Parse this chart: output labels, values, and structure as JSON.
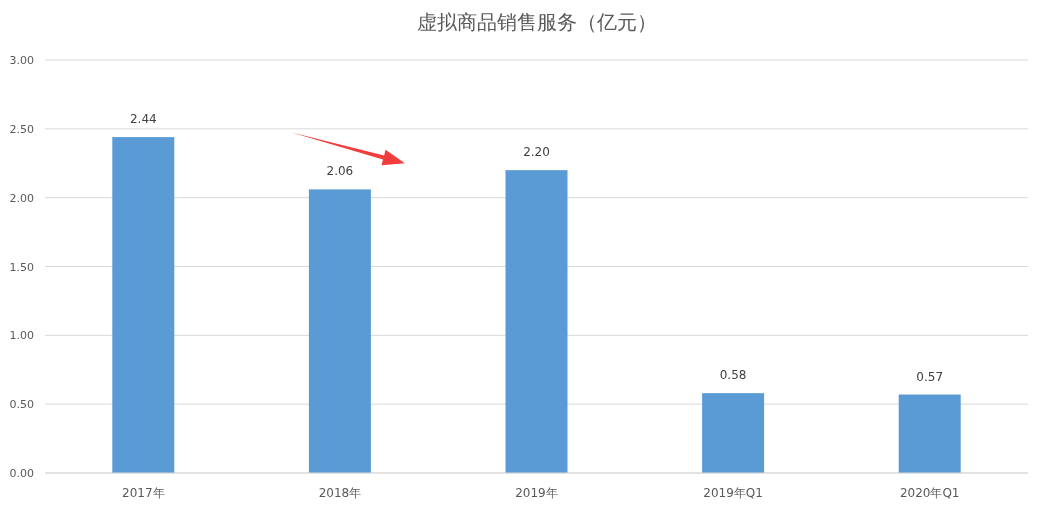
{
  "chart_data": {
    "type": "bar",
    "title": "虚拟商品销售服务（亿元）",
    "categories": [
      "2017年",
      "2018年",
      "2019年",
      "2019年Q1",
      "2020年Q1"
    ],
    "values": [
      2.44,
      2.06,
      2.2,
      0.58,
      0.57
    ],
    "color": "#5b9bd5",
    "ylim": [
      0,
      3
    ],
    "yticks": [
      {
        "value": 0,
        "label": "0.00"
      },
      {
        "value": 0.5,
        "label": "0.50"
      },
      {
        "value": 1,
        "label": "1.00"
      },
      {
        "value": 1.5,
        "label": "1.50"
      },
      {
        "value": 2,
        "label": "2.00"
      },
      {
        "value": 2.5,
        "label": "2.50"
      },
      {
        "value": 3,
        "label": "3.00"
      }
    ],
    "grid": "y",
    "value_labels": [
      "2.44",
      "2.06",
      "2.20",
      "0.58",
      "0.57"
    ]
  }
}
